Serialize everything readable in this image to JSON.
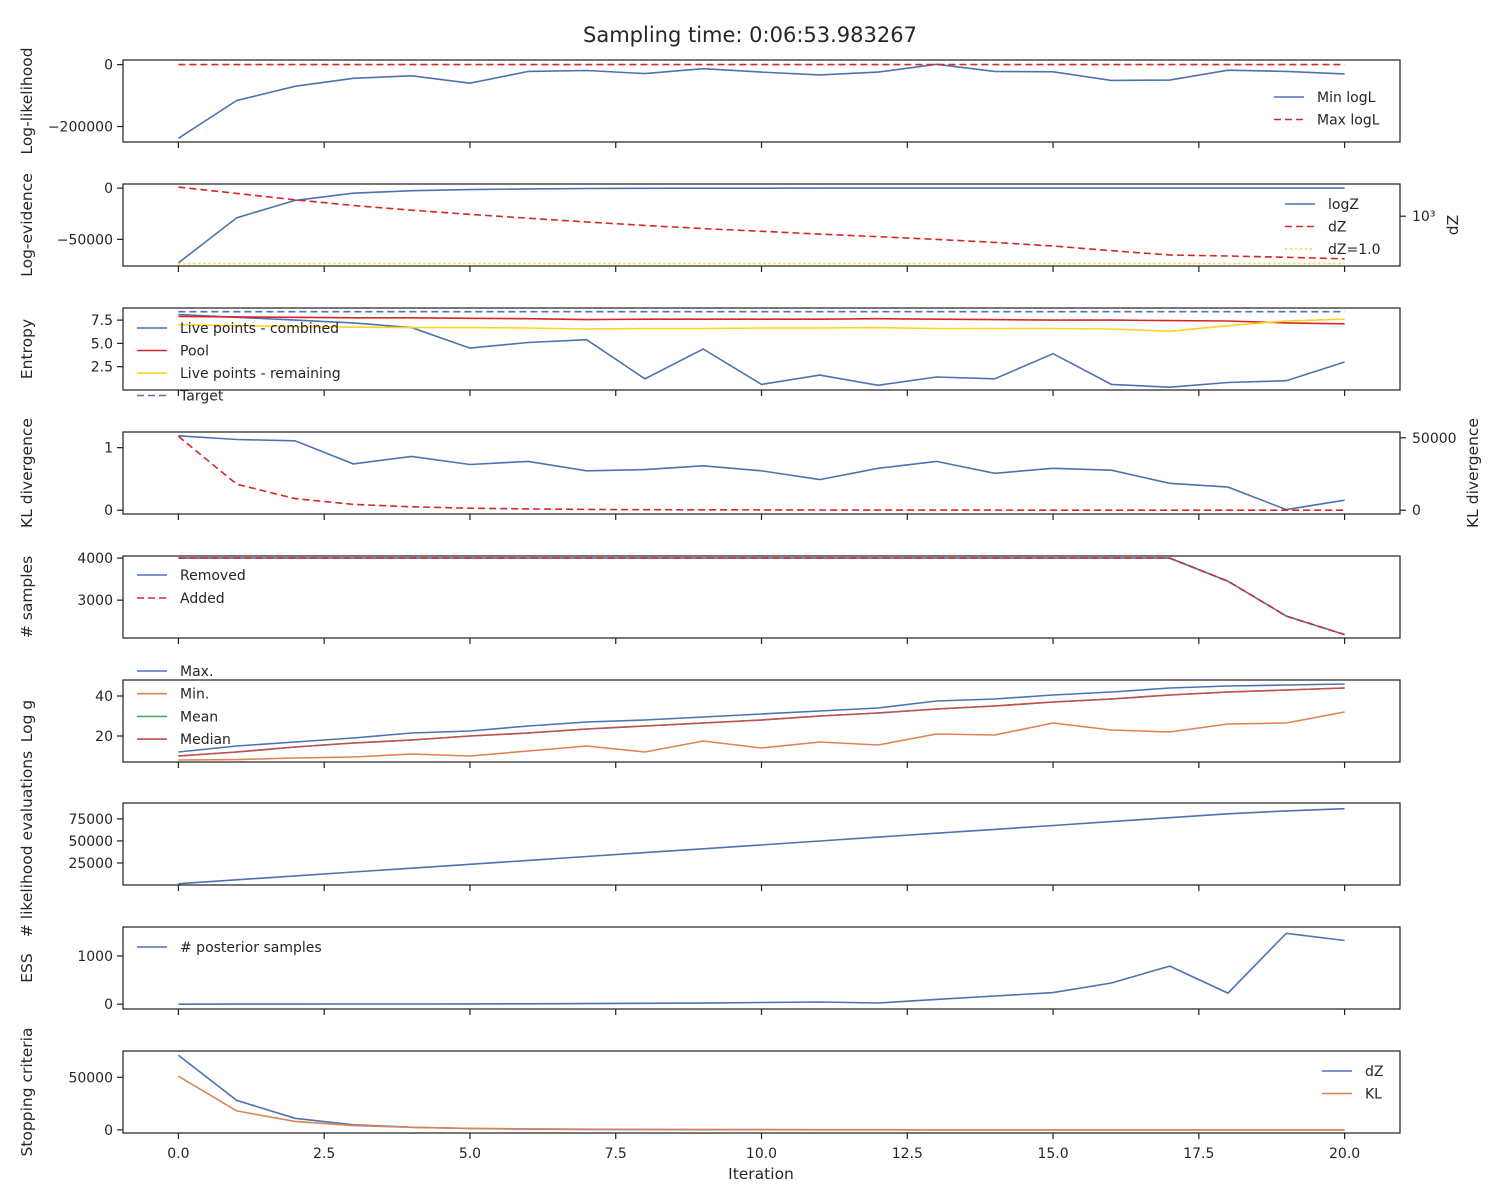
{
  "title": "Sampling time: 0:06:53.983267",
  "xlabel": "Iteration",
  "xlim": [
    -0.95,
    20.95
  ],
  "x_ticks": [
    0,
    2.5,
    5,
    7.5,
    10,
    12.5,
    15,
    17.5,
    20
  ],
  "x_tick_labels": [
    "0.0",
    "2.5",
    "5.0",
    "7.5",
    "10.0",
    "12.5",
    "15.0",
    "17.5",
    "20.0"
  ],
  "colors": {
    "blue": "#4c72b0",
    "red": "#d62728",
    "orange": "#dd8452",
    "gold": "#ffd21f",
    "green": "#55a868",
    "crimson": "#c44e52",
    "axis": "#262626"
  },
  "chart_data": [
    {
      "type": "line",
      "ylabel": "Log-likelihood",
      "ylim": [
        -250000,
        15000
      ],
      "yticks": [
        0,
        -200000
      ],
      "ytick_labels": [
        "0",
        "−200000"
      ],
      "legend": "right",
      "series": [
        {
          "name": "Min logL",
          "color": "blue",
          "style": "solid",
          "values": [
            -238000,
            -116000,
            -70000,
            -44000,
            -36000,
            -60000,
            -22000,
            -19000,
            -29000,
            -13000,
            -24000,
            -33000,
            -24000,
            1000,
            -22000,
            -23000,
            -51000,
            -50000,
            -18000,
            -22000,
            -30000
          ]
        },
        {
          "name": "Max logL",
          "color": "red",
          "style": "dashed",
          "values": [
            0,
            0,
            0,
            0,
            0,
            0,
            0,
            0,
            0,
            0,
            0,
            0,
            0,
            0,
            0,
            0,
            0,
            0,
            0,
            0,
            0
          ]
        }
      ]
    },
    {
      "type": "line",
      "ylabel": "Log-evidence",
      "ylabel_right": "dZ",
      "ylim": [
        -76000,
        4000
      ],
      "yticks": [
        0,
        -50000
      ],
      "ytick_labels": [
        "0",
        "−50000"
      ],
      "right_scale": "log",
      "right_ylim": [
        0.7,
        110000
      ],
      "right_yticks": [
        1000
      ],
      "right_ytick_labels": [
        "10³"
      ],
      "legend": "right",
      "series": [
        {
          "name": "logZ",
          "color": "blue",
          "style": "solid",
          "values": [
            -73000,
            -29000,
            -12000,
            -5000,
            -2500,
            -1500,
            -800,
            -400,
            -200,
            -100,
            -50,
            -30,
            -20,
            -15,
            -10,
            -8,
            -6,
            -5,
            -4,
            -3,
            -2
          ]
        },
        {
          "name": "dZ",
          "color": "red",
          "style": "dashed",
          "axis": "right",
          "values": [
            70000,
            28000,
            11000,
            4800,
            2400,
            1300,
            750,
            430,
            260,
            165,
            110,
            74,
            50,
            34,
            22,
            13,
            6.5,
            3.5,
            3.0,
            2.5,
            2.0
          ]
        },
        {
          "name": "dZ=1.0",
          "color": "gold",
          "style": "dotted",
          "axis": "right",
          "values": [
            1,
            1,
            1,
            1,
            1,
            1,
            1,
            1,
            1,
            1,
            1,
            1,
            1,
            1,
            1,
            1,
            1,
            1,
            1,
            1,
            1
          ]
        }
      ]
    },
    {
      "type": "line",
      "ylabel": "Entropy",
      "ylim": [
        0,
        8.8
      ],
      "yticks": [
        2.5,
        5.0,
        7.5
      ],
      "ytick_labels": [
        "2.5",
        "5.0",
        "7.5"
      ],
      "legend": "left",
      "series": [
        {
          "name": "Live points - combined",
          "color": "blue",
          "style": "solid",
          "values": [
            8.1,
            7.8,
            7.5,
            7.2,
            6.7,
            4.5,
            5.1,
            5.4,
            1.2,
            4.4,
            0.6,
            1.6,
            0.5,
            1.4,
            1.2,
            3.9,
            0.6,
            0.3,
            0.8,
            1.0,
            3.0
          ]
        },
        {
          "name": "Pool",
          "color": "red",
          "style": "solid",
          "values": [
            7.9,
            7.85,
            7.8,
            7.75,
            7.75,
            7.7,
            7.65,
            7.55,
            7.6,
            7.6,
            7.6,
            7.6,
            7.65,
            7.6,
            7.55,
            7.5,
            7.5,
            7.45,
            7.4,
            7.2,
            7.1
          ]
        },
        {
          "name": "Live points - remaining",
          "color": "gold",
          "style": "solid",
          "values": [
            7.0,
            6.9,
            6.8,
            6.75,
            6.7,
            6.7,
            6.65,
            6.55,
            6.6,
            6.6,
            6.65,
            6.65,
            6.7,
            6.6,
            6.6,
            6.6,
            6.55,
            6.3,
            6.9,
            7.4,
            7.6
          ]
        },
        {
          "name": "Target",
          "color": "blue",
          "style": "dashed",
          "values": [
            8.4,
            8.4,
            8.4,
            8.4,
            8.4,
            8.4,
            8.4,
            8.4,
            8.4,
            8.4,
            8.4,
            8.4,
            8.4,
            8.4,
            8.4,
            8.4,
            8.4,
            8.4,
            8.4,
            8.4,
            8.4
          ]
        }
      ]
    },
    {
      "type": "line",
      "ylabel": "KL divergence",
      "ylabel_right": "KL divergence",
      "ylim": [
        -0.06,
        1.25
      ],
      "yticks": [
        0,
        1
      ],
      "ytick_labels": [
        "0",
        "1"
      ],
      "right_ylim": [
        -2600,
        54000
      ],
      "right_yticks": [
        0,
        50000
      ],
      "right_ytick_labels": [
        "0",
        "50000"
      ],
      "series": [
        {
          "name": "",
          "color": "blue",
          "style": "solid",
          "values": [
            1.19,
            1.13,
            1.11,
            0.74,
            0.86,
            0.73,
            0.78,
            0.63,
            0.65,
            0.71,
            0.63,
            0.49,
            0.67,
            0.78,
            0.59,
            0.67,
            0.64,
            0.43,
            0.37,
            0.01,
            0.16
          ]
        },
        {
          "name": "",
          "color": "red",
          "style": "dashed",
          "axis": "right",
          "values": [
            51000,
            18000,
            8000,
            4000,
            2400,
            1400,
            900,
            600,
            400,
            300,
            200,
            150,
            100,
            80,
            60,
            50,
            40,
            30,
            25,
            20,
            15
          ]
        }
      ]
    },
    {
      "type": "line",
      "ylabel": "# samples",
      "ylim": [
        2100,
        4050
      ],
      "yticks": [
        3000,
        4000
      ],
      "ytick_labels": [
        "3000",
        "4000"
      ],
      "legend": "left",
      "series": [
        {
          "name": "Removed",
          "color": "blue",
          "style": "solid",
          "values": [
            4000,
            4000,
            4000,
            4000,
            4000,
            4000,
            4000,
            4000,
            4000,
            4000,
            4000,
            4000,
            4000,
            4000,
            4000,
            4000,
            4000,
            4000,
            3450,
            2620,
            2180
          ]
        },
        {
          "name": "Added",
          "color": "red",
          "style": "dashed",
          "values": [
            4000,
            4000,
            4000,
            4000,
            4000,
            4000,
            4000,
            4000,
            4000,
            4000,
            4000,
            4000,
            4000,
            4000,
            4000,
            4000,
            4000,
            4000,
            3450,
            2620,
            2180
          ]
        }
      ]
    },
    {
      "type": "line",
      "ylabel": "Log g",
      "ylim": [
        7,
        48
      ],
      "yticks": [
        20,
        40
      ],
      "ytick_labels": [
        "20",
        "40"
      ],
      "legend": "left",
      "series": [
        {
          "name": "Max.",
          "color": "blue",
          "style": "solid",
          "values": [
            12,
            15,
            17,
            19,
            21.5,
            22.5,
            25,
            27,
            28,
            29.5,
            31,
            32.5,
            34,
            37.5,
            38.5,
            40.5,
            42,
            44,
            45,
            45.5,
            46
          ]
        },
        {
          "name": "Min.",
          "color": "orange",
          "style": "solid",
          "values": [
            8,
            8.2,
            9,
            9.5,
            11,
            10,
            12.5,
            15,
            12,
            17.5,
            14,
            17,
            15.5,
            21,
            20.5,
            26.5,
            23,
            22,
            26,
            26.5,
            32
          ]
        },
        {
          "name": "Mean",
          "color": "green",
          "style": "solid",
          "values": [
            10,
            12,
            14.5,
            16.5,
            18,
            20,
            21.5,
            23.5,
            25,
            26.5,
            28,
            30,
            31.5,
            33.5,
            35,
            37,
            38.5,
            40.5,
            42,
            43,
            44
          ]
        },
        {
          "name": "Median",
          "color": "crimson",
          "style": "solid",
          "values": [
            10,
            12,
            14.5,
            16.5,
            18,
            20,
            21.5,
            23.5,
            25,
            26.5,
            28,
            30,
            31.5,
            33.5,
            35,
            37,
            38.5,
            40.5,
            42,
            43,
            44
          ]
        }
      ]
    },
    {
      "type": "line",
      "ylabel": "# likelihood evaluations",
      "ylim": [
        0,
        93000
      ],
      "yticks": [
        25000,
        50000,
        75000
      ],
      "ytick_labels": [
        "25000",
        "50000",
        "75000"
      ],
      "series": [
        {
          "name": "",
          "color": "blue",
          "style": "solid",
          "values": [
            1500,
            5900,
            10300,
            14700,
            19100,
            23500,
            27900,
            32300,
            36700,
            41100,
            45500,
            49900,
            54300,
            58700,
            63100,
            67500,
            71900,
            76300,
            80700,
            84000,
            86500
          ]
        }
      ]
    },
    {
      "type": "line",
      "ylabel": "ESS",
      "ylim": [
        -100,
        1600
      ],
      "yticks": [
        0,
        1000
      ],
      "ytick_labels": [
        "0",
        "1000"
      ],
      "legend": "left",
      "series": [
        {
          "name": "# posterior samples",
          "color": "blue",
          "style": "solid",
          "values": [
            0,
            1,
            2,
            3,
            4,
            5,
            8,
            12,
            18,
            22,
            35,
            45,
            25,
            100,
            170,
            240,
            440,
            790,
            230,
            1470,
            1320
          ]
        }
      ]
    },
    {
      "type": "line",
      "ylabel": "Stopping criteria",
      "ylim": [
        -3000,
        75000
      ],
      "yticks": [
        0,
        50000
      ],
      "ytick_labels": [
        "0",
        "50000"
      ],
      "legend": "right",
      "series": [
        {
          "name": "dZ",
          "color": "blue",
          "style": "solid",
          "values": [
            71000,
            28000,
            11000,
            4800,
            2400,
            1300,
            750,
            430,
            260,
            165,
            110,
            74,
            50,
            34,
            22,
            13,
            6.5,
            3.5,
            3.0,
            2.5,
            2.0
          ]
        },
        {
          "name": "KL",
          "color": "orange",
          "style": "solid",
          "values": [
            51000,
            18000,
            8000,
            4000,
            2400,
            1400,
            900,
            600,
            400,
            300,
            200,
            150,
            100,
            80,
            60,
            50,
            40,
            30,
            25,
            20,
            15
          ]
        }
      ]
    }
  ]
}
